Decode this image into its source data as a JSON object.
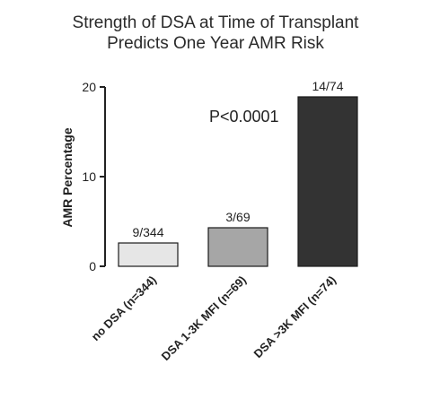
{
  "chart_data": {
    "type": "bar",
    "title_line1": "Strength of DSA at  Time of Transplant",
    "title_line2": "Predicts One Year AMR Risk",
    "ylabel": "AMR Percentage",
    "xlabel": "",
    "ylim": [
      0,
      20
    ],
    "yticks": [
      0,
      10,
      20
    ],
    "yticklabels": [
      "0",
      "10",
      "20"
    ],
    "categories": [
      "no DSA (n=344)",
      "DSA 1-3K MFI (n=69)",
      "DSA >3K MFI (n=74)"
    ],
    "values": [
      2.6,
      4.3,
      18.9
    ],
    "data_labels": [
      "9/344",
      "3/69",
      "14/74"
    ],
    "bar_colors": [
      "#e6e6e6",
      "#a6a6a6",
      "#333333"
    ],
    "annotation": "P<0.0001",
    "grid": false,
    "legend": "none"
  }
}
